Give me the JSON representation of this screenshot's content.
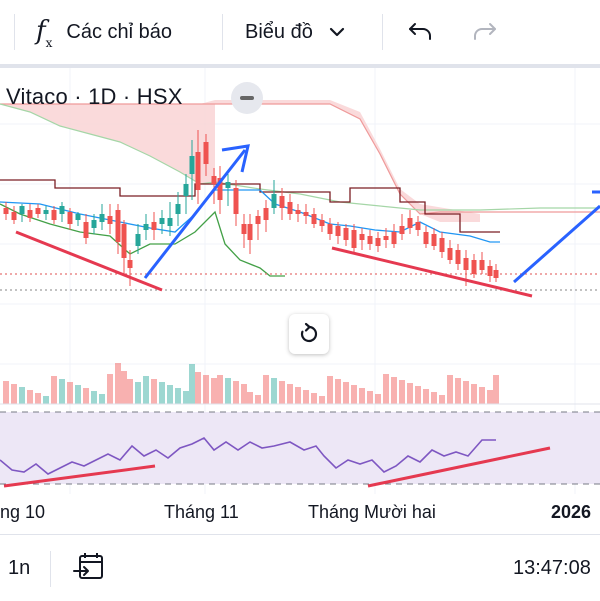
{
  "toolbar": {
    "indicators_label": "Các chỉ báo",
    "chart_type_label": "Biểu đồ",
    "icons": [
      "fx-icon",
      "chevron-down-icon",
      "undo-icon",
      "redo-icon"
    ]
  },
  "legend": {
    "title": "Vitaco · 1D · HSX"
  },
  "time_axis": {
    "labels": [
      "ng 10",
      "Tháng 11",
      "Tháng Mười hai",
      "2026"
    ]
  },
  "bottom_bar": {
    "interval": "1n",
    "clock": "13:47:08"
  },
  "colors": {
    "up": "#26a69a",
    "down": "#ef5350",
    "cloud": "#f8d4d4",
    "rsi_band": "#ede7f6",
    "rsi_line": "#7e57c2",
    "trend_red": "#e53950",
    "trend_blue": "#2962ff"
  }
}
